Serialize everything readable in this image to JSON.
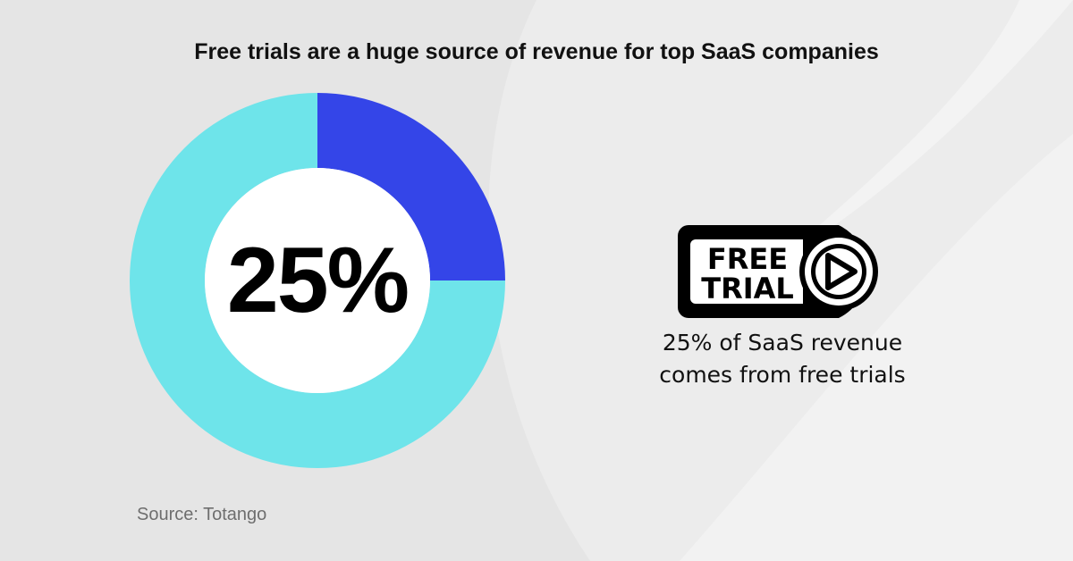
{
  "title": "Free trials are a huge source of revenue for top SaaS companies",
  "source": "Source: Totango",
  "colors": {
    "highlight": "#3445e8",
    "remainder": "#6ee4ea",
    "background": "#ececec"
  },
  "badge": {
    "line1": "FREE",
    "line2": "TRIAL",
    "icon": "play-circle-icon"
  },
  "caption": {
    "line1": "25% of SaaS revenue",
    "line2": "comes from free trials"
  },
  "chart_data": {
    "type": "pie",
    "title": "Free trials are a huge source of revenue for top SaaS companies",
    "center_label": "25%",
    "slices": [
      {
        "value": 25,
        "color": "#3445e8"
      },
      {
        "value": 75,
        "color": "#6ee4ea"
      }
    ]
  }
}
